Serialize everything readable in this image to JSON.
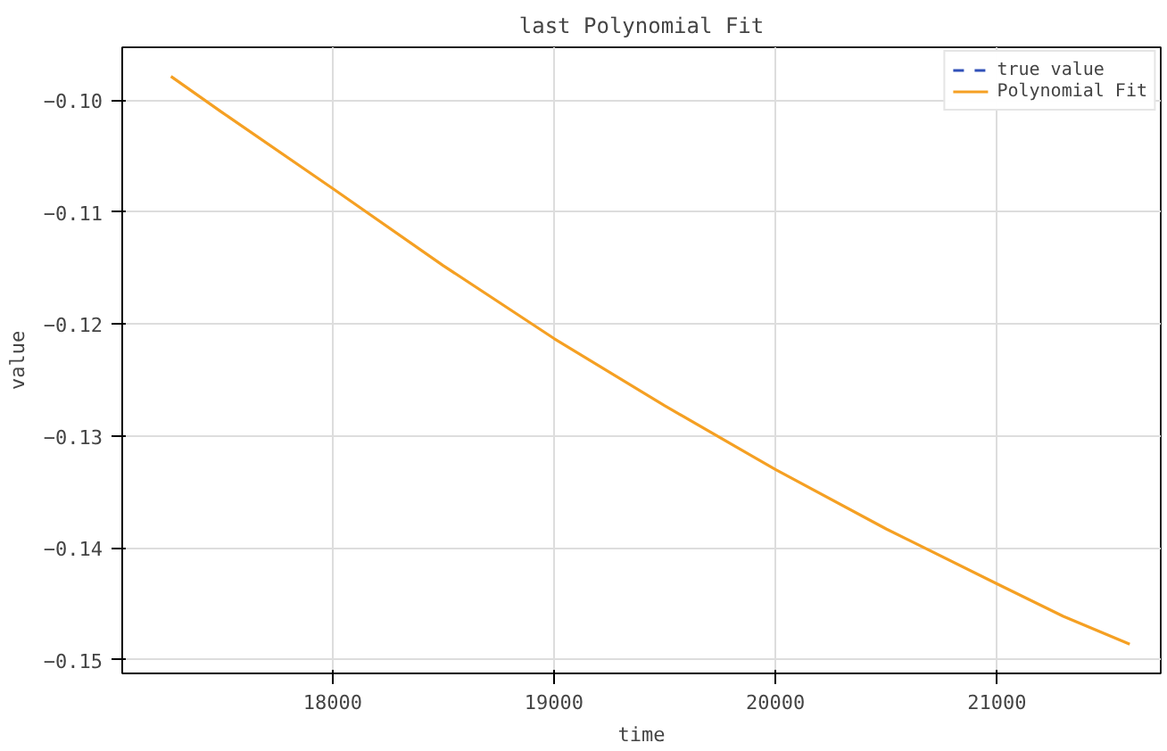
{
  "chart_data": {
    "type": "line",
    "title": "last Polynomial Fit",
    "xlabel": "time",
    "ylabel": "value",
    "x": [
      17270,
      17500,
      18000,
      18500,
      19000,
      19500,
      20000,
      20500,
      21000,
      21300,
      21600
    ],
    "series": [
      {
        "name": "true value",
        "color": "#3050b8",
        "line_style": "dashed",
        "values": [
          null,
          null,
          null,
          null,
          null,
          null,
          null,
          null,
          null,
          null,
          null
        ]
      },
      {
        "name": "Polynomial Fit",
        "color": "#f5a023",
        "line_style": "solid",
        "values": [
          -0.0979,
          -0.1011,
          -0.1079,
          -0.1148,
          -0.1213,
          -0.1273,
          -0.133,
          -0.1383,
          -0.1432,
          -0.1461,
          -0.1486
        ]
      }
    ],
    "xlim": [
      17050,
      21740
    ],
    "ylim": [
      -0.1512,
      -0.0953
    ],
    "xticks": [
      18000,
      19000,
      20000,
      21000
    ],
    "yticks": [
      {
        "value": -0.1,
        "label": "−0.10"
      },
      {
        "value": -0.11,
        "label": "−0.11"
      },
      {
        "value": -0.12,
        "label": "−0.12"
      },
      {
        "value": -0.13,
        "label": "−0.13"
      },
      {
        "value": -0.14,
        "label": "−0.14"
      },
      {
        "value": -0.15,
        "label": "−0.15"
      }
    ],
    "grid": true,
    "legend": "top right",
    "marker": "none"
  }
}
